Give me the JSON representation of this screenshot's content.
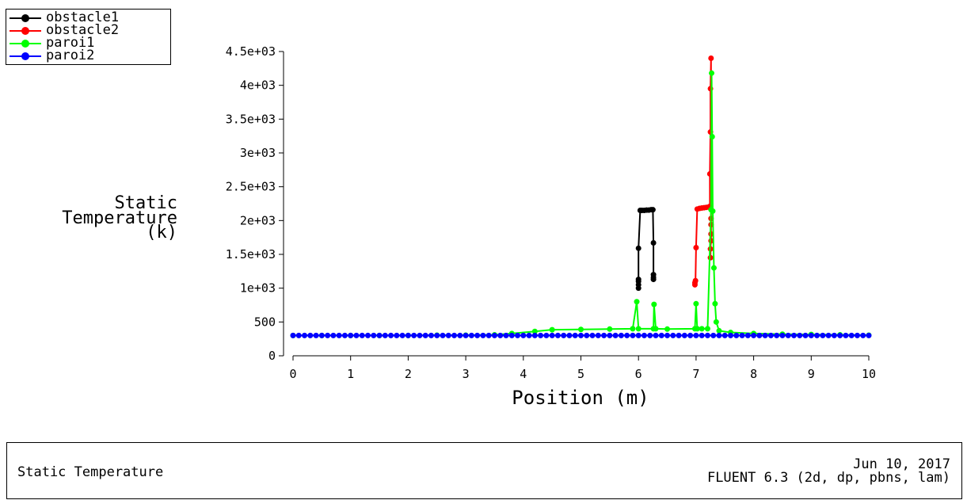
{
  "legend": [
    {
      "name": "obstacle1",
      "color": "#000000"
    },
    {
      "name": "obstacle2",
      "color": "#ff0000"
    },
    {
      "name": "paroi1",
      "color": "#00ff00"
    },
    {
      "name": "paroi2",
      "color": "#0000ff"
    }
  ],
  "footer": {
    "title": "Static Temperature",
    "date": "Jun 10, 2017",
    "solver": "FLUENT 6.3 (2d, dp, pbns, lam)"
  },
  "chart_data": {
    "type": "line",
    "xlabel": "Position (m)",
    "ylabel": [
      "Static",
      "Temperature",
      "(k)"
    ],
    "xlim": [
      0,
      10
    ],
    "ylim": [
      0,
      4500
    ],
    "x_ticks": [
      "0",
      "1",
      "2",
      "3",
      "4",
      "5",
      "6",
      "7",
      "8",
      "9",
      "10"
    ],
    "y_ticks": [
      "0",
      "500",
      "1e+03",
      "1.5e+03",
      "2e+03",
      "2.5e+03",
      "3e+03",
      "3.5e+03",
      "4e+03",
      "4.5e+03"
    ],
    "legend_position": "top-left",
    "grid": false,
    "series": [
      {
        "name": "obstacle1",
        "color": "#000000",
        "points": [
          [
            6.0,
            1000
          ],
          [
            6.0,
            1050
          ],
          [
            6.0,
            1100
          ],
          [
            6.0,
            1130
          ],
          [
            6.0,
            1590
          ],
          [
            6.03,
            2150
          ],
          [
            6.06,
            2150
          ],
          [
            6.1,
            2150
          ],
          [
            6.14,
            2155
          ],
          [
            6.18,
            2155
          ],
          [
            6.22,
            2160
          ],
          [
            6.25,
            2160
          ],
          [
            6.26,
            1670
          ],
          [
            6.26,
            1200
          ],
          [
            6.26,
            1160
          ],
          [
            6.26,
            1130
          ]
        ]
      },
      {
        "name": "obstacle2",
        "color": "#ff0000",
        "points": [
          [
            6.98,
            1050
          ],
          [
            6.98,
            1080
          ],
          [
            6.99,
            1110
          ],
          [
            7.0,
            1600
          ],
          [
            7.02,
            2170
          ],
          [
            7.06,
            2180
          ],
          [
            7.1,
            2185
          ],
          [
            7.14,
            2190
          ],
          [
            7.18,
            2195
          ],
          [
            7.22,
            2200
          ],
          [
            7.24,
            2210
          ],
          [
            7.24,
            2690
          ],
          [
            7.25,
            3310
          ],
          [
            7.25,
            3950
          ],
          [
            7.26,
            4400
          ],
          [
            7.26,
            1800
          ],
          [
            7.26,
            1700
          ],
          [
            7.25,
            1580
          ],
          [
            7.25,
            1450
          ],
          [
            7.26,
            1940
          ],
          [
            7.26,
            2030
          ]
        ]
      },
      {
        "name": "paroi1",
        "color": "#00ff00",
        "points": [
          [
            0,
            300
          ],
          [
            0.5,
            300
          ],
          [
            1,
            300
          ],
          [
            1.5,
            300
          ],
          [
            2,
            300
          ],
          [
            2.5,
            305
          ],
          [
            3,
            305
          ],
          [
            3.5,
            310
          ],
          [
            3.8,
            330
          ],
          [
            4.2,
            360
          ],
          [
            4.5,
            385
          ],
          [
            5,
            390
          ],
          [
            5.5,
            395
          ],
          [
            5.9,
            400
          ],
          [
            5.97,
            800
          ],
          [
            6.0,
            400
          ],
          [
            6.26,
            400
          ],
          [
            6.27,
            760
          ],
          [
            6.3,
            400
          ],
          [
            6.5,
            395
          ],
          [
            6.98,
            400
          ],
          [
            7.0,
            770
          ],
          [
            7.02,
            400
          ],
          [
            7.1,
            400
          ],
          [
            7.2,
            400
          ],
          [
            7.26,
            2160
          ],
          [
            7.27,
            4180
          ],
          [
            7.28,
            3240
          ],
          [
            7.29,
            2140
          ],
          [
            7.31,
            1300
          ],
          [
            7.33,
            770
          ],
          [
            7.35,
            500
          ],
          [
            7.4,
            370
          ],
          [
            7.6,
            345
          ],
          [
            8,
            330
          ],
          [
            8.5,
            320
          ],
          [
            9,
            315
          ],
          [
            9.5,
            310
          ],
          [
            10,
            305
          ]
        ]
      },
      {
        "name": "paroi2",
        "color": "#0000ff",
        "points": [
          [
            0,
            300
          ],
          [
            10,
            300
          ]
        ]
      }
    ]
  }
}
